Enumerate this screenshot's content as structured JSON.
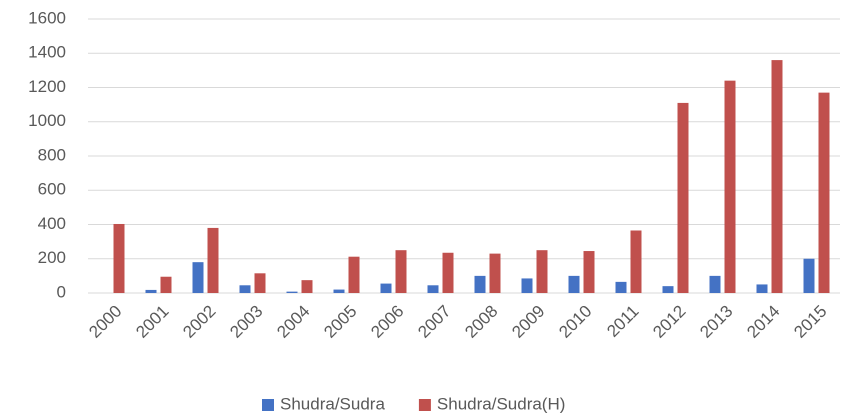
{
  "chart_data": {
    "type": "bar",
    "categories": [
      "2000",
      "2001",
      "2002",
      "2003",
      "2004",
      "2005",
      "2006",
      "2007",
      "2008",
      "2009",
      "2010",
      "2011",
      "2012",
      "2013",
      "2014",
      "2015"
    ],
    "series": [
      {
        "name": "Shudra/Sudra",
        "color": "#4472c4",
        "values": [
          0,
          18,
          180,
          45,
          8,
          20,
          55,
          45,
          100,
          85,
          100,
          65,
          40,
          100,
          50,
          200
        ]
      },
      {
        "name": "Shudra/Sudra(H)",
        "color": "#c0504d",
        "values": [
          403,
          95,
          380,
          115,
          75,
          212,
          250,
          235,
          230,
          250,
          245,
          365,
          1110,
          1240,
          1360,
          1170
        ]
      }
    ],
    "ylim": [
      0,
      1600
    ],
    "yticks": [
      0,
      200,
      400,
      600,
      800,
      1000,
      1200,
      1400,
      1600
    ],
    "grid": true,
    "legend": "bottom"
  }
}
